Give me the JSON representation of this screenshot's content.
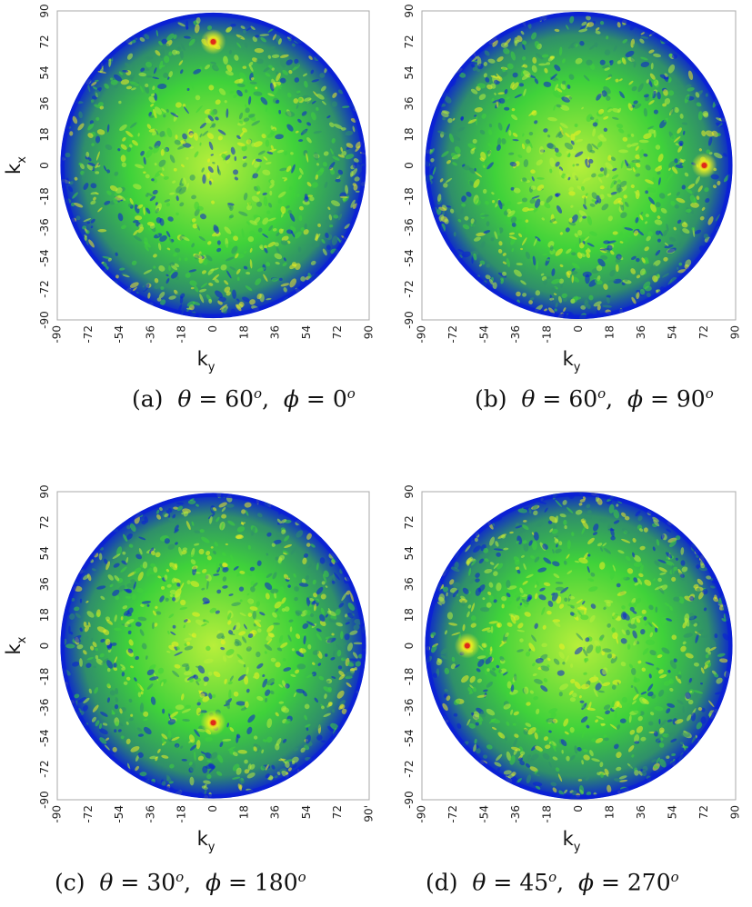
{
  "chart_data": [
    {
      "type": "heatmap",
      "panel": "(a)",
      "xlabel": "k",
      "xlabel_sub": "y",
      "ylabel": "k",
      "ylabel_sub": "x",
      "xlim": [
        -90,
        90
      ],
      "ylim": [
        -90,
        90
      ],
      "xticks": [
        "-90",
        "-72",
        "-54",
        "-36",
        "-18",
        "0",
        "18",
        "36",
        "54",
        "72",
        "90"
      ],
      "yticks": [
        "90",
        "72",
        "54",
        "36",
        "18",
        "0",
        "-18",
        "-36",
        "-54",
        "-72",
        "-90"
      ],
      "peak": {
        "ky": 0,
        "kx": 72
      },
      "caption": {
        "label": "(a)",
        "theta_sym": "θ",
        "theta": "60",
        "phi_sym": "ϕ",
        "phi": "0",
        "unit": "o"
      }
    },
    {
      "type": "heatmap",
      "panel": "(b)",
      "xlabel": "k",
      "xlabel_sub": "y",
      "ylabel": "",
      "ylabel_sub": "",
      "xlim": [
        -90,
        90
      ],
      "ylim": [
        -90,
        90
      ],
      "xticks": [
        "-90",
        "-72",
        "-54",
        "-36",
        "-18",
        "0",
        "18",
        "36",
        "54",
        "72",
        "90"
      ],
      "yticks": [
        "90",
        "72",
        "54",
        "36",
        "18",
        "0",
        "-18",
        "-36",
        "-54",
        "-72",
        "-90"
      ],
      "peak": {
        "ky": 72,
        "kx": 0
      },
      "caption": {
        "label": "(b)",
        "theta_sym": "θ",
        "theta": "60",
        "phi_sym": "ϕ",
        "phi": "90",
        "unit": "o"
      }
    },
    {
      "type": "heatmap",
      "panel": "(c)",
      "xlabel": "k",
      "xlabel_sub": "y",
      "ylabel": "k",
      "ylabel_sub": "x",
      "xlim": [
        -90,
        90
      ],
      "ylim": [
        -90,
        90
      ],
      "xticks": [
        "-90",
        "-72",
        "-54",
        "-36",
        "-18",
        "0",
        "18",
        "36",
        "54",
        "72",
        "90'"
      ],
      "yticks": [
        "90",
        "72",
        "54",
        "36",
        "18",
        "0",
        "-18",
        "-36",
        "-54",
        "-72",
        "-90"
      ],
      "peak": {
        "ky": 0,
        "kx": -45
      },
      "caption": {
        "label": "(c)",
        "theta_sym": "θ",
        "theta": "30",
        "phi_sym": "ϕ",
        "phi": "180",
        "unit": "o"
      }
    },
    {
      "type": "heatmap",
      "panel": "(d)",
      "xlabel": "k",
      "xlabel_sub": "y",
      "ylabel": "",
      "ylabel_sub": "",
      "xlim": [
        -90,
        90
      ],
      "ylim": [
        -90,
        90
      ],
      "xticks": [
        "-90",
        "-72",
        "-54",
        "-36",
        "-18",
        "0",
        "18",
        "36",
        "54",
        "72",
        "90"
      ],
      "yticks": [
        "90",
        "72",
        "54",
        "36",
        "18",
        "0",
        "-18",
        "-36",
        "-54",
        "-72",
        "-90"
      ],
      "peak": {
        "ky": -64,
        "kx": 0
      },
      "caption": {
        "label": "(d)",
        "theta_sym": "θ",
        "theta": "45",
        "phi_sym": "ϕ",
        "phi": "270",
        "unit": "o"
      }
    }
  ],
  "colors": {
    "dark_blue": "#0a1fd6",
    "teal": "#2f8f6a",
    "green": "#3fd23a",
    "yellow_green": "#b8ef3a",
    "yellow": "#f0f020",
    "peak_red": "#e02a1a",
    "frame": "#a8a8a8"
  }
}
